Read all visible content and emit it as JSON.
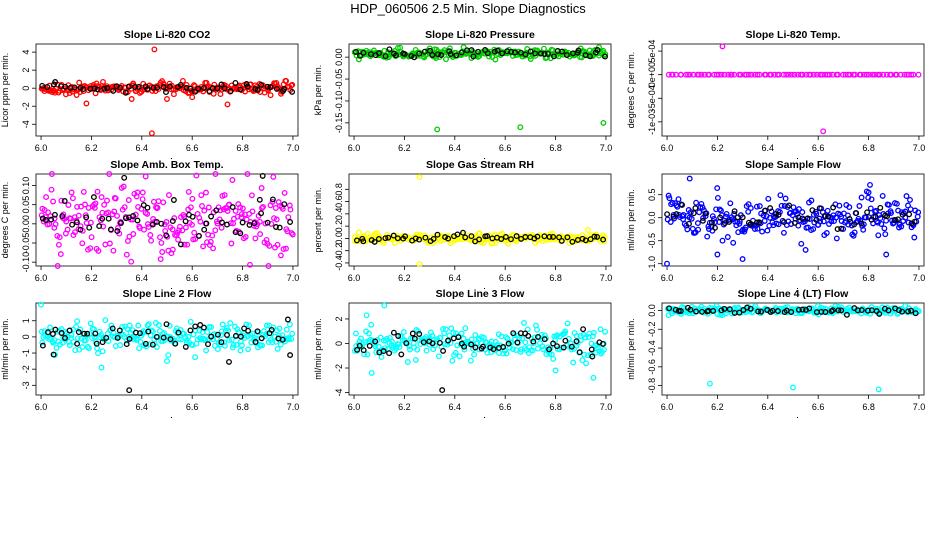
{
  "figure": {
    "title": "HDP_060506  2.5 Min. Slope Diagnostics"
  },
  "chart_data": [
    {
      "type": "scatter",
      "title": "Slope Li-820 CO2",
      "ylabel": "Licor ppm per min.",
      "xlabel": "",
      "xlim": [
        5.98,
        7.02
      ],
      "ylim": [
        -5.3,
        4.9
      ],
      "xticks": [
        "6.0",
        "6.2",
        "6.4",
        "6.6",
        "6.8",
        "7.0"
      ],
      "yticks": [
        "-4",
        "-2",
        "0",
        "2",
        "4"
      ],
      "color": "#ff0000",
      "series": [
        {
          "name": "colored",
          "color": "#ff0000",
          "base": 0.0,
          "spread": 0.3,
          "count": 220,
          "outliers": [
            [
              6.45,
              4.3
            ],
            [
              6.44,
              -5.0
            ],
            [
              6.18,
              -1.7
            ],
            [
              6.36,
              -1.2
            ],
            [
              6.5,
              -1.2
            ],
            [
              6.74,
              -1.8
            ],
            [
              6.6,
              -1.0
            ]
          ]
        },
        {
          "name": "black",
          "color": "#000000",
          "base": 0.0,
          "spread": 0.25,
          "count": 55,
          "outliers": []
        }
      ]
    },
    {
      "type": "scatter",
      "title": "Slope Li-820 Pressure",
      "ylabel": "kPa per min.",
      "xlabel": "",
      "xlim": [
        5.98,
        7.02
      ],
      "ylim": [
        -0.18,
        0.03
      ],
      "xticks": [
        "6.0",
        "6.2",
        "6.4",
        "6.6",
        "6.8",
        "7.0"
      ],
      "yticks": [
        "-0.15",
        "-0.10",
        "-0.05",
        "0.00"
      ],
      "color": "#00cc00",
      "series": [
        {
          "name": "colored",
          "color": "#00cc00",
          "base": 0.008,
          "spread": 0.005,
          "count": 220,
          "outliers": [
            [
              6.33,
              -0.165
            ],
            [
              6.66,
              -0.16
            ],
            [
              6.99,
              -0.15
            ],
            [
              6.9,
              0.02
            ],
            [
              6.32,
              0.018
            ]
          ]
        },
        {
          "name": "black",
          "color": "#000000",
          "base": 0.008,
          "spread": 0.004,
          "count": 55,
          "outliers": []
        }
      ]
    },
    {
      "type": "scatter",
      "title": "Slope Li-820 Temp.",
      "ylabel": "degrees C per min.",
      "xlabel": "",
      "xlim": [
        5.98,
        7.02
      ],
      "ylim": [
        -0.0013,
        0.00065
      ],
      "xticks": [
        "6.0",
        "6.2",
        "6.4",
        "6.6",
        "6.8",
        "7.0"
      ],
      "yticks": [
        "-1e-03",
        "-5e-04",
        "0e+00",
        "5e-04"
      ],
      "color": "#ff00ff",
      "series": [
        {
          "name": "colored",
          "color": "#ff00ff",
          "base": 0.0,
          "spread": 0.0,
          "count": 90,
          "outliers": [
            [
              6.22,
              0.0006
            ],
            [
              6.62,
              -0.0012
            ]
          ]
        },
        {
          "name": "black",
          "color": "#000000",
          "base": 0.0,
          "spread": 0.0,
          "count": 0,
          "outliers": []
        }
      ]
    },
    {
      "type": "scatter",
      "title": "Slope Amb. Box Temp.",
      "ylabel": "degrees C per min.",
      "xlabel": "",
      "xlim": [
        5.98,
        7.02
      ],
      "ylim": [
        -0.11,
        0.13
      ],
      "xticks": [
        "6.0",
        "6.2",
        "6.4",
        "6.6",
        "6.8",
        "7.0"
      ],
      "yticks": [
        "-0.10",
        "-0.05",
        "0.00",
        "0.05",
        "0.10"
      ],
      "color": "#ff00ff",
      "series": [
        {
          "name": "colored",
          "color": "#ff00ff",
          "base": 0.01,
          "spread": 0.05,
          "count": 260,
          "outliers": []
        },
        {
          "name": "black",
          "color": "#000000",
          "base": 0.01,
          "spread": 0.035,
          "count": 55,
          "outliers": [
            [
              6.33,
              0.12
            ],
            [
              6.88,
              0.125
            ]
          ]
        }
      ]
    },
    {
      "type": "scatter",
      "title": "Slope Gas Stream RH",
      "ylabel": "percent per min.",
      "xlabel": "",
      "xlim": [
        5.98,
        7.02
      ],
      "ylim": [
        -0.45,
        1.05
      ],
      "xticks": [
        "6.0",
        "6.2",
        "6.4",
        "6.6",
        "6.8",
        "7.0"
      ],
      "yticks": [
        "-0.4",
        "-0.2",
        "0.0",
        "0.2",
        "0.4",
        "0.6",
        "0.8"
      ],
      "color": "#ffff00",
      "series": [
        {
          "name": "colored",
          "color": "#ffff00",
          "base": 0.0,
          "spread": 0.035,
          "count": 230,
          "outliers": [
            [
              6.26,
              1.0
            ],
            [
              6.26,
              -0.42
            ]
          ]
        },
        {
          "name": "black",
          "color": "#000000",
          "base": 0.0,
          "spread": 0.03,
          "count": 55,
          "outliers": []
        }
      ]
    },
    {
      "type": "scatter",
      "title": "Slope Sample Flow",
      "ylabel": "ml/min per min.",
      "xlabel": "",
      "xlim": [
        5.98,
        7.02
      ],
      "ylim": [
        -1.05,
        0.95
      ],
      "xticks": [
        "6.0",
        "6.2",
        "6.4",
        "6.6",
        "6.8",
        "7.0"
      ],
      "yticks": [
        "-1.0",
        "-0.5",
        "0.0",
        "0.5"
      ],
      "color": "#0000ff",
      "series": [
        {
          "name": "colored",
          "color": "#0000ff",
          "base": 0.0,
          "spread": 0.22,
          "count": 260,
          "outliers": [
            [
              6.0,
              -1.0
            ],
            [
              6.09,
              0.85
            ],
            [
              6.2,
              -0.8
            ],
            [
              6.3,
              -0.9
            ],
            [
              6.55,
              -0.7
            ],
            [
              6.87,
              -0.8
            ],
            [
              6.8,
              0.55
            ]
          ]
        },
        {
          "name": "black",
          "color": "#000000",
          "base": 0.0,
          "spread": 0.12,
          "count": 55,
          "outliers": []
        }
      ]
    },
    {
      "type": "scatter",
      "title": "Slope Line 2 Flow",
      "ylabel": "ml/min per min.",
      "xlabel": "",
      "xlim": [
        5.98,
        7.02
      ],
      "ylim": [
        -3.6,
        2.1
      ],
      "xticks": [
        "6.0",
        "6.2",
        "6.4",
        "6.6",
        "6.8",
        "7.0"
      ],
      "yticks": [
        "-3",
        "-2",
        "-1",
        "0",
        "1"
      ],
      "color": "#00ffff",
      "series": [
        {
          "name": "colored",
          "color": "#00ffff",
          "base": 0.0,
          "spread": 0.45,
          "count": 240,
          "outliers": [
            [
              6.0,
              2.0
            ],
            [
              6.24,
              -1.9
            ],
            [
              6.5,
              -1.5
            ]
          ]
        },
        {
          "name": "black",
          "color": "#000000",
          "base": 0.0,
          "spread": 0.45,
          "count": 55,
          "outliers": [
            [
              6.35,
              -3.3
            ],
            [
              6.05,
              -1.1
            ]
          ]
        }
      ]
    },
    {
      "type": "scatter",
      "title": "Slope Line 3 Flow",
      "ylabel": "ml/min per min.",
      "xlabel": "",
      "xlim": [
        5.98,
        7.02
      ],
      "ylim": [
        -4.2,
        3.3
      ],
      "xticks": [
        "6.0",
        "6.2",
        "6.4",
        "6.6",
        "6.8",
        "7.0"
      ],
      "yticks": [
        "-4",
        "-2",
        "0",
        "2"
      ],
      "color": "#00ffff",
      "series": [
        {
          "name": "colored",
          "color": "#00ffff",
          "base": 0.0,
          "spread": 0.6,
          "count": 240,
          "outliers": [
            [
              6.12,
              3.1
            ],
            [
              6.05,
              2.3
            ],
            [
              6.8,
              -2.2
            ],
            [
              6.95,
              -2.8
            ],
            [
              6.07,
              -2.4
            ]
          ]
        },
        {
          "name": "black",
          "color": "#000000",
          "base": 0.0,
          "spread": 0.45,
          "count": 55,
          "outliers": [
            [
              6.35,
              -3.8
            ]
          ]
        }
      ]
    },
    {
      "type": "scatter",
      "title": "Slope Line 4 (LT) Flow",
      "ylabel": "ml/min per min.",
      "xlabel": "",
      "xlim": [
        5.98,
        7.02
      ],
      "ylim": [
        -0.9,
        0.08
      ],
      "xticks": [
        "6.0",
        "6.2",
        "6.4",
        "6.6",
        "6.8",
        "7.0"
      ],
      "yticks": [
        "-0.8",
        "-0.6",
        "-0.4",
        "-0.2",
        "0.0"
      ],
      "color": "#00ffff",
      "series": [
        {
          "name": "colored",
          "color": "#00ffff",
          "base": 0.0,
          "spread": 0.02,
          "count": 230,
          "outliers": [
            [
              6.17,
              -0.78
            ],
            [
              6.5,
              -0.82
            ],
            [
              6.84,
              -0.84
            ]
          ]
        },
        {
          "name": "black",
          "color": "#000000",
          "base": 0.0,
          "spread": 0.015,
          "count": 55,
          "outliers": []
        }
      ]
    }
  ]
}
